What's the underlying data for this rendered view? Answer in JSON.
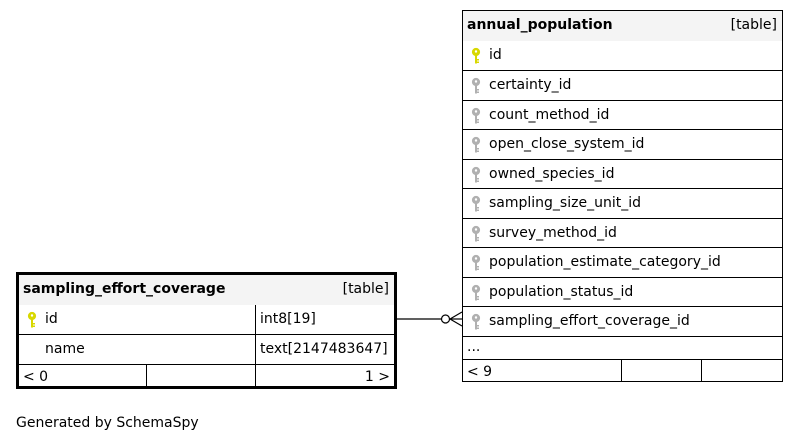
{
  "diagram": {
    "annual_population": {
      "name": "annual_population",
      "kind": "[table]",
      "columns": [
        {
          "name": "id",
          "key": "primary"
        },
        {
          "name": "certainty_id",
          "key": "foreign"
        },
        {
          "name": "count_method_id",
          "key": "foreign"
        },
        {
          "name": "open_close_system_id",
          "key": "foreign"
        },
        {
          "name": "owned_species_id",
          "key": "foreign"
        },
        {
          "name": "sampling_size_unit_id",
          "key": "foreign"
        },
        {
          "name": "survey_method_id",
          "key": "foreign"
        },
        {
          "name": "population_estimate_category_id",
          "key": "foreign"
        },
        {
          "name": "population_status_id",
          "key": "foreign"
        },
        {
          "name": "sampling_effort_coverage_id",
          "key": "foreign"
        }
      ],
      "more": "...",
      "parents": "< 9"
    },
    "sampling_effort_coverage": {
      "name": "sampling_effort_coverage",
      "kind": "[table]",
      "columns": [
        {
          "name": "id",
          "type": "int8[19]",
          "key": "primary"
        },
        {
          "name": "name",
          "type": "text[2147483647]",
          "key": "none"
        }
      ],
      "parents": "< 0",
      "children": "1 >"
    }
  },
  "colors": {
    "primary_key": "#d8d800",
    "foreign_key": "#b0b0b0",
    "header_bg": "#f4f4f4"
  },
  "footer": "Generated by SchemaSpy"
}
